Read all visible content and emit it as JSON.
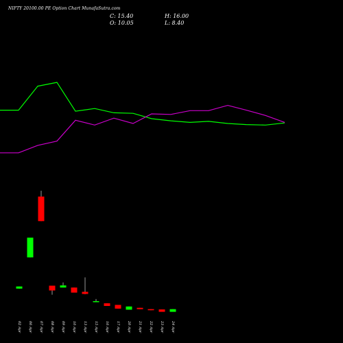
{
  "header": {
    "title": "NIFTY 20100.00  PE Option  Chart  MunafaSutra.com",
    "close": "C: 15.40",
    "open": "O: 10.05",
    "high": "H: 16.00",
    "low": "L: 8.40"
  },
  "chart_data": {
    "type": "candlestick",
    "categories": [
      "02 Apr",
      "06 Apr",
      "07 Apr",
      "08 Apr",
      "09 Apr",
      "10 Apr",
      "13 Apr",
      "15 Apr",
      "16 Apr",
      "17 Apr",
      "20 Apr",
      "21 Apr",
      "22 Apr",
      "23 Apr",
      "24 Apr"
    ],
    "candles": [
      {
        "open": 10.5,
        "close": 14.5,
        "high": 14.5,
        "low": 10.5,
        "color": "#00ff00"
      },
      {
        "open": 69.0,
        "close": 106.0,
        "high": 106.0,
        "low": 69.0,
        "color": "#00ff00"
      },
      {
        "open": 183.0,
        "close": 137.0,
        "high": 194.0,
        "low": 137.0,
        "color": "#ff0000"
      },
      {
        "open": 16.0,
        "close": 7.0,
        "high": 16.0,
        "low": -1.0,
        "color": "#ff0000"
      },
      {
        "open": 12.5,
        "close": 16.5,
        "high": 22.0,
        "low": 12.5,
        "color": "#00ff00"
      },
      {
        "open": 12.5,
        "close": 3.0,
        "high": 12.5,
        "low": 3.0,
        "color": "#ff0000"
      },
      {
        "open": 4.5,
        "close": 0.5,
        "high": 31.5,
        "low": 0.0,
        "color": "#ff0000"
      },
      {
        "open": -14.0,
        "close": -13.0,
        "high": -9.0,
        "low": -14.0,
        "color": "#00ff00"
      },
      {
        "open": -17.0,
        "close": -22.0,
        "high": -17.0,
        "low": -22.0,
        "color": "#ff0000"
      },
      {
        "open": -20.0,
        "close": -27.0,
        "high": -20.0,
        "low": -27.0,
        "color": "#ff0000"
      },
      {
        "open": -29.0,
        "close": -23.0,
        "high": -23.0,
        "low": -29.0,
        "color": "#00ff00"
      },
      {
        "open": -25.5,
        "close": -28.0,
        "high": -25.5,
        "low": -28.0,
        "color": "#ff0000"
      },
      {
        "open": -28.0,
        "close": -30.0,
        "high": -28.0,
        "low": -30.0,
        "color": "#ff0000"
      },
      {
        "open": -28.5,
        "close": -33.0,
        "high": -28.5,
        "low": -33.0,
        "color": "#ff0000"
      },
      {
        "open": -33.0,
        "close": -28.0,
        "high": -28.0,
        "low": -33.0,
        "color": "#00ff00"
      }
    ],
    "series": [
      {
        "color": "#00ff00",
        "x": [
          0,
          27,
          55,
          83,
          110,
          138,
          166,
          194,
          221,
          249,
          277,
          304,
          332,
          359,
          387,
          415
        ],
        "values": [
          345,
          345,
          390,
          397,
          343,
          348,
          340,
          339,
          329,
          325,
          322,
          324,
          320,
          318,
          317,
          321
        ]
      },
      {
        "color": "#cc00cc",
        "x": [
          0,
          27,
          55,
          83,
          110,
          138,
          166,
          194,
          221,
          249,
          277,
          304,
          332,
          359,
          387,
          415
        ],
        "values": [
          265,
          265,
          279,
          287,
          326,
          317,
          330,
          320,
          338,
          337,
          344,
          344,
          354,
          345,
          335,
          322
        ]
      }
    ],
    "ylim": [
      -40,
      500
    ],
    "xlim": [
      0,
      500
    ]
  }
}
